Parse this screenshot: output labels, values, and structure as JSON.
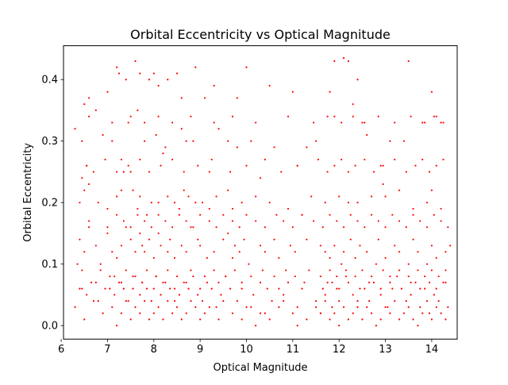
{
  "chart_data": {
    "type": "scatter",
    "title": "Orbital Eccentricity vs Optical Magnitude",
    "xlabel": "Optical Magnitude",
    "ylabel": "Orbital Eccentricity",
    "xlim": [
      6.05,
      14.55
    ],
    "ylim": [
      -0.022,
      0.455
    ],
    "xticks": [
      6,
      7,
      8,
      9,
      10,
      11,
      12,
      13,
      14
    ],
    "yticks": [
      0.0,
      0.1,
      0.2,
      0.3,
      0.4
    ],
    "ytick_labels": [
      "0.0",
      "0.1",
      "0.2",
      "0.3",
      "0.4"
    ],
    "grid": false,
    "marker_color": "#ff0000",
    "series": [
      {
        "name": "",
        "x": [
          6.3,
          6.45,
          6.5,
          6.75,
          6.9,
          7.0,
          7.2,
          7.25,
          7.4,
          7.6,
          7.7,
          7.9,
          8.0,
          8.1,
          8.3,
          8.5,
          8.6,
          8.9,
          9.1,
          9.3,
          9.8,
          10.0,
          10.5,
          11.0,
          11.3,
          11.8,
          11.9,
          12.1,
          12.2,
          12.4,
          13.5,
          14.0,
          6.45,
          6.55,
          6.6,
          6.7,
          7.1,
          7.3,
          7.35,
          7.45,
          7.5,
          7.65,
          7.8,
          8.05,
          8.2,
          8.25,
          8.6,
          8.7,
          8.85,
          9.2,
          9.4,
          9.6,
          9.8,
          10.1,
          10.3,
          10.6,
          11.1,
          11.5,
          11.9,
          12.3,
          12.5,
          12.6,
          12.9,
          13.1,
          13.4,
          13.8,
          14.1,
          14.2,
          6.4,
          6.5,
          6.6,
          6.8,
          7.0,
          7.2,
          7.3,
          7.55,
          7.65,
          7.7,
          7.85,
          7.95,
          8.1,
          8.3,
          8.45,
          8.55,
          8.65,
          8.75,
          8.9,
          9.05,
          9.2,
          9.35,
          9.6,
          9.7,
          9.9,
          10.2,
          10.5,
          10.9,
          11.2,
          11.4,
          11.7,
          12.0,
          12.2,
          12.4,
          12.7,
          12.95,
          13.0,
          13.3,
          13.6,
          13.9,
          14.0,
          14.2,
          6.35,
          6.4,
          6.5,
          6.6,
          6.75,
          6.85,
          7.0,
          7.1,
          7.2,
          7.3,
          7.4,
          7.5,
          7.6,
          7.7,
          7.75,
          7.8,
          7.9,
          8.0,
          8.1,
          8.15,
          8.3,
          8.35,
          8.45,
          8.6,
          8.7,
          8.8,
          8.95,
          9.0,
          9.15,
          9.3,
          9.5,
          9.6,
          9.7,
          9.75,
          9.85,
          9.95,
          10.05,
          10.3,
          10.4,
          10.6,
          10.7,
          10.95,
          11.05,
          11.3,
          11.6,
          11.7,
          11.8,
          11.9,
          12.05,
          12.1,
          12.25,
          12.35,
          12.45,
          12.6,
          12.8,
          12.85,
          13.0,
          13.2,
          13.3,
          13.5,
          13.6,
          13.7,
          13.9,
          14.0,
          14.1,
          14.3,
          14.4,
          6.3,
          6.45,
          6.55,
          6.65,
          6.8,
          6.95,
          7.05,
          7.15,
          7.25,
          7.35,
          7.45,
          7.55,
          7.7,
          7.75,
          7.85,
          7.95,
          8.05,
          8.15,
          8.25,
          8.35,
          8.45,
          8.55,
          8.65,
          8.75,
          8.85,
          8.95,
          9.05,
          9.15,
          9.25,
          9.35,
          9.45,
          9.55,
          9.65,
          9.8,
          9.9,
          10.0,
          10.15,
          10.3,
          10.45,
          10.55,
          10.8,
          10.9,
          11.1,
          11.2,
          11.5,
          11.6,
          11.7,
          11.75,
          11.85,
          11.95,
          12.0,
          12.15,
          12.3,
          12.4,
          12.55,
          12.65,
          12.75,
          12.9,
          13.05,
          13.15,
          13.25,
          13.45,
          13.55,
          13.65,
          13.75,
          13.85,
          13.95,
          14.05,
          14.15,
          14.25,
          14.35,
          6.5,
          6.7,
          6.9,
          7.1,
          7.2,
          7.3,
          7.4,
          7.5,
          7.6,
          7.7,
          7.8,
          7.9,
          8.0,
          8.1,
          8.2,
          8.3,
          8.4,
          8.5,
          8.6,
          8.7,
          8.8,
          8.9,
          9.0,
          9.1,
          9.2,
          9.4,
          9.5,
          9.7,
          9.9,
          10.1,
          10.2,
          10.4,
          10.5,
          10.7,
          10.8,
          11.0,
          11.1,
          11.3,
          11.5,
          11.6,
          11.7,
          11.8,
          11.9,
          12.0,
          12.1,
          12.2,
          12.3,
          12.4,
          12.5,
          12.6,
          12.7,
          12.8,
          12.9,
          13.0,
          13.1,
          13.2,
          13.3,
          13.4,
          13.5,
          13.6,
          13.7,
          13.8,
          13.9,
          14.0,
          14.1,
          14.2,
          14.3,
          6.6,
          7.0,
          7.2,
          7.35,
          7.5,
          7.65,
          7.8,
          7.95,
          8.1,
          8.25,
          8.4,
          8.55,
          8.7,
          8.85,
          9.0,
          9.2,
          9.35,
          9.5,
          9.7,
          9.85,
          10.0,
          10.2,
          10.4,
          10.65,
          10.8,
          11.0,
          11.2,
          11.45,
          11.65,
          11.8,
          11.95,
          12.1,
          12.25,
          12.4,
          12.55,
          12.7,
          12.85,
          13.0,
          13.15,
          13.3,
          13.45,
          13.6,
          13.75,
          13.9,
          14.05,
          14.2,
          14.35,
          6.45,
          6.85,
          7.15,
          7.4,
          7.6,
          7.85,
          8.05,
          8.3,
          8.5,
          8.8,
          9.1,
          9.3,
          9.55,
          9.75,
          10.1,
          10.35,
          10.6,
          10.85,
          11.05,
          11.35,
          11.6,
          11.8,
          11.95,
          12.15,
          12.35,
          12.5,
          12.7,
          12.95,
          13.1,
          13.3,
          13.5,
          13.7,
          13.85,
          14.0,
          14.15,
          14.3,
          6.55,
          6.95,
          7.2,
          7.45,
          7.7,
          7.9,
          8.15,
          8.4,
          8.65,
          8.95,
          9.25,
          9.65,
          10.0,
          10.4,
          10.75,
          11.1,
          11.55,
          11.75,
          11.9,
          12.05,
          12.2,
          12.35,
          12.55,
          12.75,
          12.95,
          13.2,
          13.45,
          13.65,
          13.8,
          13.95,
          14.1,
          14.25,
          6.4,
          6.75,
          7.05,
          7.3,
          7.55,
          7.75,
          8.0,
          8.2,
          8.45,
          8.7,
          9.0,
          9.4,
          9.9,
          10.3,
          10.7,
          11.25,
          11.65,
          11.85,
          12.0,
          12.2,
          12.45,
          12.65,
          12.9,
          13.1,
          13.35,
          13.55,
          13.75,
          13.95,
          14.1,
          14.3,
          6.6,
          7.1,
          7.5,
          7.8,
          8.1,
          8.4,
          8.8,
          9.3,
          9.7,
          10.2,
          10.9,
          11.45,
          11.75,
          12.05,
          12.3,
          12.55,
          12.85,
          13.2,
          13.55,
          13.85,
          14.05,
          14.25
        ],
        "y": [
          0.32,
          0.3,
          0.36,
          0.35,
          0.31,
          0.38,
          0.42,
          0.41,
          0.4,
          0.43,
          0.41,
          0.4,
          0.41,
          0.39,
          0.4,
          0.41,
          0.37,
          0.42,
          0.37,
          0.39,
          0.37,
          0.42,
          0.39,
          0.38,
          0.29,
          0.38,
          0.43,
          0.435,
          0.43,
          0.4,
          0.43,
          0.38,
          0.24,
          0.26,
          0.37,
          0.25,
          0.3,
          0.27,
          0.25,
          0.33,
          0.25,
          0.35,
          0.3,
          0.31,
          0.28,
          0.29,
          0.32,
          0.3,
          0.3,
          0.25,
          0.32,
          0.3,
          0.29,
          0.3,
          0.24,
          0.29,
          0.26,
          0.3,
          0.34,
          0.36,
          0.33,
          0.31,
          0.26,
          0.3,
          0.3,
          0.33,
          0.34,
          0.33,
          0.2,
          0.22,
          0.23,
          0.2,
          0.19,
          0.21,
          0.22,
          0.22,
          0.19,
          0.21,
          0.18,
          0.2,
          0.2,
          0.21,
          0.2,
          0.19,
          0.22,
          0.21,
          0.2,
          0.2,
          0.19,
          0.21,
          0.22,
          0.19,
          0.2,
          0.21,
          0.2,
          0.19,
          0.18,
          0.21,
          0.2,
          0.21,
          0.2,
          0.2,
          0.21,
          0.23,
          0.21,
          0.22,
          0.19,
          0.2,
          0.22,
          0.19,
          0.1,
          0.14,
          0.12,
          0.16,
          0.13,
          0.1,
          0.15,
          0.12,
          0.11,
          0.13,
          0.16,
          0.14,
          0.12,
          0.15,
          0.13,
          0.12,
          0.14,
          0.11,
          0.15,
          0.13,
          0.12,
          0.14,
          0.11,
          0.13,
          0.12,
          0.16,
          0.14,
          0.13,
          0.11,
          0.12,
          0.14,
          0.15,
          0.11,
          0.13,
          0.12,
          0.14,
          0.1,
          0.13,
          0.12,
          0.14,
          0.11,
          0.13,
          0.12,
          0.14,
          0.13,
          0.12,
          0.11,
          0.13,
          0.1,
          0.12,
          0.14,
          0.11,
          0.13,
          0.12,
          0.1,
          0.14,
          0.11,
          0.13,
          0.12,
          0.1,
          0.14,
          0.12,
          0.1,
          0.13,
          0.11,
          0.12,
          0.13,
          0.03,
          0.06,
          0.05,
          0.07,
          0.04,
          0.06,
          0.08,
          0.05,
          0.07,
          0.06,
          0.04,
          0.08,
          0.05,
          0.07,
          0.06,
          0.04,
          0.08,
          0.05,
          0.07,
          0.06,
          0.04,
          0.05,
          0.07,
          0.06,
          0.08,
          0.05,
          0.04,
          0.07,
          0.06,
          0.03,
          0.05,
          0.08,
          0.06,
          0.04,
          0.07,
          0.03,
          0.05,
          0.02,
          0.06,
          0.04,
          0.05,
          0.07,
          0.03,
          0.06,
          0.04,
          0.02,
          0.05,
          0.07,
          0.03,
          0.06,
          0.04,
          0.08,
          0.05,
          0.03,
          0.06,
          0.04,
          0.07,
          0.05,
          0.03,
          0.06,
          0.08,
          0.04,
          0.05,
          0.07,
          0.03,
          0.06,
          0.02,
          0.05,
          0.04,
          0.07,
          0.03,
          0.01,
          0.04,
          0.02,
          0.03,
          0.0,
          0.02,
          0.04,
          0.01,
          0.03,
          0.02,
          0.04,
          0.01,
          0.02,
          0.03,
          0.01,
          0.04,
          0.02,
          0.03,
          0.01,
          0.02,
          0.04,
          0.03,
          0.01,
          0.02,
          0.03,
          0.01,
          0.04,
          0.02,
          0.01,
          0.03,
          0.0,
          0.02,
          0.01,
          0.03,
          0.04,
          0.02,
          0.0,
          0.01,
          0.03,
          0.02,
          0.04,
          0.01,
          0.02,
          0.0,
          0.03,
          0.01,
          0.02,
          0.04,
          0.01,
          0.03,
          0.02,
          0.0,
          0.01,
          0.03,
          0.02,
          0.04,
          0.01,
          0.02,
          0.03,
          0.01,
          0.0,
          0.02,
          0.04,
          0.01,
          0.03,
          0.02,
          0.01,
          0.17,
          0.16,
          0.18,
          0.17,
          0.16,
          0.18,
          0.17,
          0.16,
          0.18,
          0.17,
          0.16,
          0.18,
          0.17,
          0.16,
          0.18,
          0.17,
          0.16,
          0.18,
          0.17,
          0.16,
          0.18,
          0.17,
          0.16,
          0.18,
          0.17,
          0.16,
          0.18,
          0.17,
          0.16,
          0.18,
          0.17,
          0.16,
          0.18,
          0.17,
          0.16,
          0.18,
          0.17,
          0.16,
          0.18,
          0.17,
          0.16,
          0.18,
          0.17,
          0.16,
          0.18,
          0.17,
          0.16,
          0.09,
          0.09,
          0.08,
          0.09,
          0.08,
          0.09,
          0.08,
          0.09,
          0.08,
          0.09,
          0.08,
          0.09,
          0.08,
          0.09,
          0.08,
          0.09,
          0.08,
          0.09,
          0.08,
          0.09,
          0.08,
          0.09,
          0.08,
          0.09,
          0.08,
          0.09,
          0.08,
          0.09,
          0.08,
          0.09,
          0.08,
          0.09,
          0.08,
          0.09,
          0.08,
          0.09,
          0.26,
          0.27,
          0.25,
          0.26,
          0.27,
          0.25,
          0.26,
          0.27,
          0.25,
          0.26,
          0.27,
          0.25,
          0.26,
          0.27,
          0.25,
          0.26,
          0.27,
          0.25,
          0.26,
          0.27,
          0.25,
          0.26,
          0.27,
          0.25,
          0.26,
          0.27,
          0.25,
          0.26,
          0.27,
          0.25,
          0.26,
          0.27,
          0.06,
          0.07,
          0.06,
          0.07,
          0.06,
          0.07,
          0.06,
          0.07,
          0.06,
          0.07,
          0.06,
          0.07,
          0.06,
          0.07,
          0.06,
          0.07,
          0.06,
          0.07,
          0.06,
          0.07,
          0.06,
          0.07,
          0.06,
          0.07,
          0.06,
          0.07,
          0.06,
          0.07,
          0.06,
          0.07,
          0.34,
          0.33,
          0.34,
          0.33,
          0.34,
          0.33,
          0.34,
          0.33,
          0.34,
          0.33,
          0.34,
          0.33,
          0.34,
          0.33,
          0.34,
          0.33,
          0.34,
          0.33,
          0.34,
          0.33,
          0.34,
          0.33
        ]
      }
    ]
  }
}
